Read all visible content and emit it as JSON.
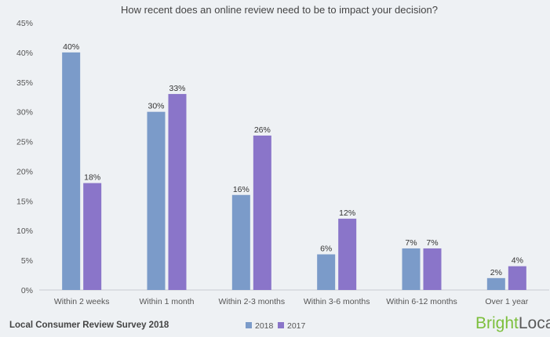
{
  "chart_data": {
    "type": "bar",
    "title": "How recent does an online review need to be to impact your decision?",
    "categories": [
      "Within 2 weeks",
      "Within 1 month",
      "Within 2-3 months",
      "Within 3-6 months",
      "Within 6-12 months",
      "Over 1 year"
    ],
    "series": [
      {
        "name": "2018",
        "values": [
          40,
          30,
          16,
          6,
          7,
          2
        ],
        "labels": [
          "40%",
          "30%",
          "16%",
          "6%",
          "7%",
          "2%"
        ]
      },
      {
        "name": "2017",
        "values": [
          18,
          33,
          26,
          12,
          7,
          4
        ],
        "labels": [
          "18%",
          "33%",
          "26%",
          "12%",
          "7%",
          "4%"
        ]
      }
    ],
    "yticks": [
      "0%",
      "5%",
      "10%",
      "15%",
      "20%",
      "25%",
      "30%",
      "35%",
      "40%",
      "45%"
    ],
    "ylim": [
      0,
      45
    ],
    "grid": false,
    "legend_position": "bottom"
  },
  "colors": {
    "series_2018": "#7b9bc9",
    "series_2017": "#8a75c9",
    "background": "#eef1f4",
    "brand_green": "#7cbf3c",
    "brand_gray": "#5a5a5a"
  },
  "footer": {
    "source": "Local Consumer Review Survey 2018",
    "brand_part1": "Bright",
    "brand_part2": "Local"
  }
}
